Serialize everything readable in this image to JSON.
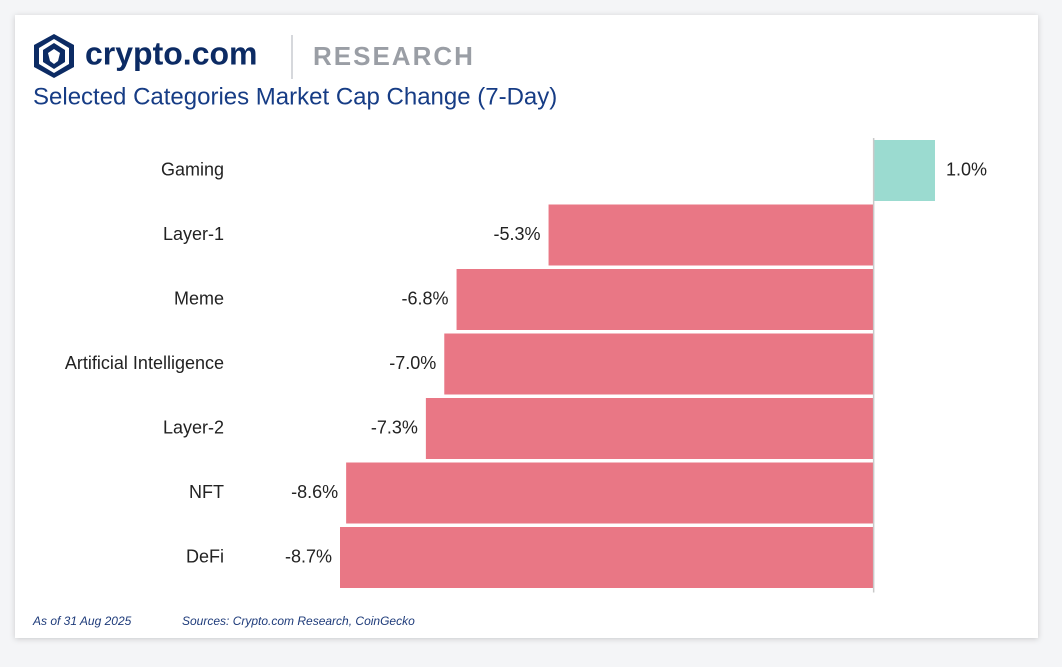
{
  "chart_data": {
    "type": "bar",
    "orientation": "horizontal",
    "brand": "crypto.com",
    "brand_section": "RESEARCH",
    "title": "Selected Categories Market Cap Change (7-Day)",
    "categories": [
      "Gaming",
      "Layer-1",
      "Meme",
      "Artificial Intelligence",
      "Layer-2",
      "NFT",
      "DeFi"
    ],
    "values": [
      1.0,
      -5.3,
      -6.8,
      -7.0,
      -7.3,
      -8.6,
      -8.7
    ],
    "value_labels": [
      "1.0%",
      "-5.3%",
      "-6.8%",
      "-7.0%",
      "-7.3%",
      "-8.6%",
      "-8.7%"
    ],
    "positive_color": "#9bdbd0",
    "negative_color": "#e97785",
    "note": "As of 31 Aug 2025",
    "source": "Sources: Crypto.com Research, CoinGecko"
  }
}
